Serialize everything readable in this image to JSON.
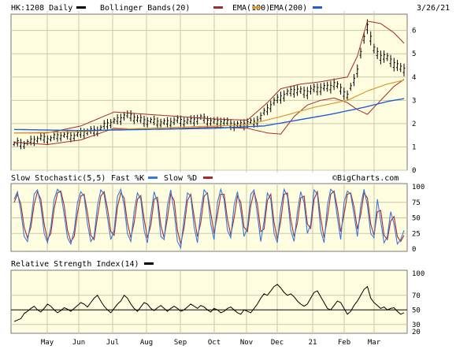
{
  "header": {
    "symbol": "HK:1208 Daily",
    "legend": [
      {
        "label": "Bollinger Bands(20)",
        "color": "#000000"
      },
      {
        "label": "EMA(100)",
        "color": "#a52a2a"
      },
      {
        "label": "EMA(200)",
        "color": "#d99a2b"
      }
    ],
    "extra_swatch_color": "#1f5fd6",
    "date": "3/26/21"
  },
  "stoch_header": {
    "title": "Slow Stochastic(5,5)",
    "fast_label": "Fast %K",
    "fast_color": "#3b78d8",
    "slow_label": "Slow %D",
    "slow_color": "#a52a2a",
    "watermark": "©BigCharts.com"
  },
  "rsi_header": {
    "title": "Relative Strength Index(14)",
    "color": "#000000"
  },
  "x_axis": {
    "months": [
      "May",
      "Jun",
      "Jul",
      "Aug",
      "Sep",
      "Oct",
      "Nov",
      "Dec",
      "21",
      "Feb",
      "Mar"
    ]
  },
  "colors": {
    "panel_bg": "#fffddf",
    "grid": "#c9c9a8",
    "price_bar": "#000000",
    "bollinger": "#a52a2a",
    "ema100": "#d99a2b",
    "ema200": "#1f5fd6"
  },
  "chart_data": [
    {
      "type": "line",
      "panel": "price",
      "y_ticks": [
        0,
        1,
        2,
        3,
        4,
        5,
        6
      ],
      "ylim": [
        0,
        6.7
      ],
      "price_keys": [
        [
          0,
          1.1
        ],
        [
          4,
          1.2
        ],
        [
          8,
          1.35
        ],
        [
          14,
          1.45
        ],
        [
          20,
          1.55
        ],
        [
          26,
          1.8
        ],
        [
          30,
          2.1
        ],
        [
          33,
          2.35
        ],
        [
          36,
          2.25
        ],
        [
          42,
          2.05
        ],
        [
          50,
          2.1
        ],
        [
          56,
          2.2
        ],
        [
          62,
          2.05
        ],
        [
          68,
          1.95
        ],
        [
          72,
          2.05
        ],
        [
          76,
          2.6
        ],
        [
          80,
          3.2
        ],
        [
          84,
          3.4
        ],
        [
          88,
          3.4
        ],
        [
          92,
          3.5
        ],
        [
          96,
          3.7
        ],
        [
          100,
          3.2
        ],
        [
          103,
          4.3
        ],
        [
          105,
          5.6
        ],
        [
          106,
          6.2
        ],
        [
          108,
          5.2
        ],
        [
          110,
          4.9
        ],
        [
          113,
          4.7
        ],
        [
          116,
          4.4
        ],
        [
          118,
          4.3
        ]
      ],
      "bb_upper_keys": [
        [
          0,
          1.6
        ],
        [
          10,
          1.6
        ],
        [
          20,
          1.9
        ],
        [
          30,
          2.5
        ],
        [
          40,
          2.4
        ],
        [
          50,
          2.3
        ],
        [
          60,
          2.2
        ],
        [
          70,
          2.15
        ],
        [
          76,
          2.9
        ],
        [
          80,
          3.5
        ],
        [
          86,
          3.7
        ],
        [
          92,
          3.8
        ],
        [
          100,
          4.0
        ],
        [
          103,
          4.9
        ],
        [
          106,
          6.4
        ],
        [
          110,
          6.3
        ],
        [
          114,
          5.9
        ],
        [
          118,
          5.3
        ]
      ],
      "bb_lower_keys": [
        [
          0,
          1.2
        ],
        [
          10,
          1.1
        ],
        [
          20,
          1.3
        ],
        [
          30,
          1.8
        ],
        [
          40,
          1.75
        ],
        [
          50,
          1.8
        ],
        [
          60,
          1.85
        ],
        [
          70,
          1.8
        ],
        [
          76,
          1.6
        ],
        [
          80,
          1.55
        ],
        [
          84,
          2.3
        ],
        [
          88,
          2.8
        ],
        [
          92,
          3.0
        ],
        [
          96,
          3.1
        ],
        [
          100,
          2.9
        ],
        [
          103,
          2.6
        ],
        [
          106,
          2.4
        ],
        [
          110,
          3.0
        ],
        [
          114,
          3.6
        ],
        [
          118,
          4.0
        ]
      ],
      "ema100_keys": [
        [
          0,
          1.6
        ],
        [
          20,
          1.65
        ],
        [
          30,
          1.75
        ],
        [
          50,
          1.85
        ],
        [
          70,
          1.95
        ],
        [
          80,
          2.3
        ],
        [
          90,
          2.7
        ],
        [
          100,
          3.0
        ],
        [
          106,
          3.4
        ],
        [
          112,
          3.7
        ],
        [
          118,
          3.9
        ]
      ],
      "ema200_keys": [
        [
          0,
          1.75
        ],
        [
          20,
          1.7
        ],
        [
          40,
          1.75
        ],
        [
          60,
          1.8
        ],
        [
          75,
          1.9
        ],
        [
          85,
          2.15
        ],
        [
          95,
          2.4
        ],
        [
          105,
          2.7
        ],
        [
          112,
          2.95
        ],
        [
          118,
          3.1
        ]
      ],
      "n_bars": 118
    },
    {
      "type": "line",
      "panel": "stochastic",
      "y_ticks": [
        0,
        25,
        50,
        75,
        100
      ],
      "ylim": [
        0,
        100
      ],
      "fast_k": [
        80,
        92,
        60,
        20,
        12,
        45,
        88,
        95,
        70,
        25,
        10,
        35,
        80,
        96,
        90,
        55,
        18,
        8,
        30,
        75,
        92,
        85,
        40,
        12,
        20,
        70,
        95,
        88,
        50,
        15,
        30,
        85,
        96,
        70,
        25,
        12,
        60,
        90,
        80,
        30,
        10,
        55,
        92,
        75,
        20,
        15,
        70,
        95,
        60,
        12,
        2,
        50,
        90,
        85,
        35,
        10,
        60,
        95,
        88,
        40,
        15,
        75,
        96,
        80,
        30,
        18,
        70,
        92,
        62,
        20,
        35,
        88,
        95,
        55,
        12,
        45,
        90,
        80,
        25,
        10,
        65,
        96,
        85,
        30,
        12,
        60,
        92,
        75,
        25,
        40,
        95,
        88,
        30,
        10,
        70,
        96,
        90,
        50,
        15,
        75,
        93,
        88,
        55,
        20,
        70,
        96,
        70,
        25,
        18,
        80,
        45,
        10,
        20,
        60,
        40,
        8,
        15,
        30
      ],
      "slow_d": [
        75,
        88,
        72,
        35,
        18,
        35,
        72,
        92,
        80,
        40,
        15,
        25,
        65,
        90,
        93,
        70,
        30,
        12,
        20,
        58,
        85,
        88,
        58,
        22,
        15,
        52,
        85,
        92,
        65,
        28,
        22,
        68,
        90,
        82,
        42,
        18,
        42,
        80,
        86,
        48,
        18,
        38,
        80,
        83,
        38,
        18,
        50,
        88,
        78,
        30,
        8,
        35,
        78,
        88,
        52,
        20,
        42,
        85,
        90,
        58,
        25,
        55,
        88,
        88,
        48,
        22,
        50,
        85,
        75,
        35,
        28,
        70,
        92,
        72,
        28,
        32,
        78,
        88,
        42,
        16,
        45,
        88,
        90,
        48,
        20,
        42,
        82,
        85,
        40,
        33,
        80,
        92,
        50,
        18,
        50,
        88,
        93,
        65,
        28,
        55,
        88,
        90,
        68,
        32,
        55,
        90,
        82,
        40,
        22,
        60,
        62,
        22,
        15,
        45,
        52,
        20,
        12,
        22
      ]
    },
    {
      "type": "line",
      "panel": "rsi",
      "y_ticks": [
        20,
        30,
        50,
        70,
        100
      ],
      "ylim": [
        20,
        100
      ],
      "reference_line": 50,
      "rsi": [
        34,
        36,
        38,
        45,
        48,
        52,
        55,
        50,
        47,
        52,
        58,
        55,
        50,
        46,
        49,
        53,
        51,
        48,
        52,
        56,
        60,
        58,
        54,
        60,
        66,
        70,
        62,
        55,
        50,
        46,
        52,
        58,
        62,
        70,
        66,
        58,
        52,
        48,
        54,
        60,
        58,
        52,
        49,
        53,
        56,
        52,
        48,
        52,
        55,
        52,
        48,
        50,
        54,
        58,
        55,
        52,
        56,
        54,
        50,
        47,
        52,
        50,
        46,
        48,
        52,
        54,
        50,
        46,
        44,
        50,
        48,
        46,
        52,
        58,
        66,
        72,
        70,
        76,
        82,
        85,
        80,
        74,
        70,
        72,
        68,
        62,
        58,
        55,
        58,
        66,
        74,
        76,
        68,
        60,
        52,
        50,
        56,
        62,
        60,
        52,
        44,
        48,
        56,
        62,
        70,
        78,
        82,
        66,
        60,
        56,
        52,
        54,
        50,
        52,
        53,
        48,
        44,
        46
      ]
    }
  ]
}
